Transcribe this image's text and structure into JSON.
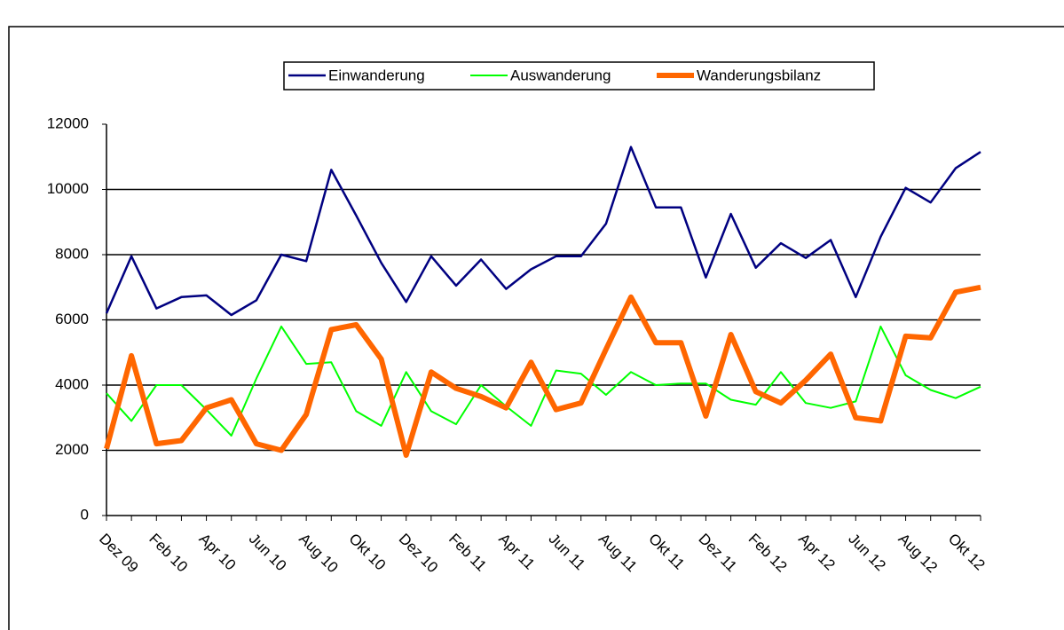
{
  "chart_data": {
    "type": "line",
    "categories": [
      "Dez 09",
      null,
      "Feb 10",
      null,
      "Apr 10",
      null,
      "Jun 10",
      null,
      "Aug 10",
      null,
      "Okt 10",
      null,
      "Dez 10",
      null,
      "Feb 11",
      null,
      "Apr 11",
      null,
      "Jun 11",
      null,
      "Aug 11",
      null,
      "Okt 11",
      null,
      "Dez 11",
      null,
      "Feb 12",
      null,
      "Apr 12",
      null,
      "Jun 12",
      null,
      "Aug 12",
      null,
      "Okt 12",
      null
    ],
    "series": [
      {
        "name": "Einwanderung",
        "color": "#000080",
        "width": 2.5,
        "values": [
          6200,
          7950,
          6350,
          6700,
          6750,
          6150,
          6600,
          8000,
          7800,
          10600,
          9200,
          7750,
          6550,
          7950,
          7050,
          7850,
          6950,
          7550,
          7950,
          7950,
          8950,
          11300,
          9450,
          9450,
          7300,
          9250,
          7600,
          8350,
          7900,
          8450,
          6700,
          8550,
          10050,
          9600,
          10650,
          11150
        ]
      },
      {
        "name": "Auswanderung",
        "color": "#00ff00",
        "width": 2,
        "values": [
          3750,
          2900,
          4000,
          4000,
          3250,
          2450,
          4200,
          5800,
          4650,
          4700,
          3200,
          2750,
          4400,
          3200,
          2800,
          4000,
          3350,
          2750,
          4450,
          4350,
          3700,
          4400,
          4000,
          4050,
          4050,
          3550,
          3400,
          4400,
          3450,
          3300,
          3500,
          5800,
          4300,
          3850,
          3600,
          3950
        ]
      },
      {
        "name": "Wanderungsbilanz",
        "color": "#ff6600",
        "width": 6,
        "values": [
          2050,
          4900,
          2200,
          2300,
          3300,
          3550,
          2200,
          2000,
          3100,
          5700,
          5850,
          4800,
          1850,
          4400,
          3900,
          3650,
          3300,
          4700,
          3250,
          3450,
          5100,
          6700,
          5300,
          5300,
          3050,
          5550,
          3800,
          3450,
          4150,
          4950,
          3000,
          2900,
          5500,
          5450,
          6850,
          7000
        ]
      }
    ],
    "ylim": [
      0,
      12000
    ],
    "yticks": [
      0,
      2000,
      4000,
      6000,
      8000,
      10000,
      12000
    ],
    "grid": true
  }
}
